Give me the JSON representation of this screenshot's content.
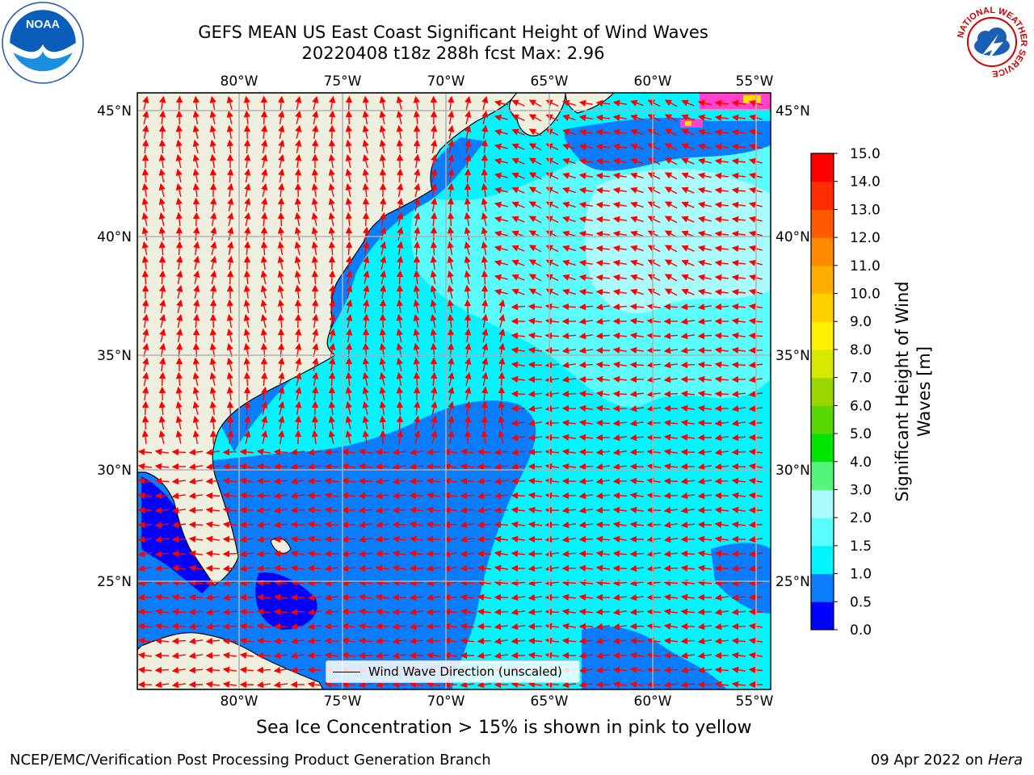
{
  "header": {
    "title_line1": "GEFS MEAN US East Coast Significant Height of Wind Waves",
    "title_line2": "20220408 t18z 288h fcst   Max: 2.96"
  },
  "logos": {
    "left": {
      "text": "NOAA",
      "icon": "noaa-logo-icon"
    },
    "right": {
      "icon": "nws-logo-icon",
      "ring_text": "NATIONAL WEATHER SERVICE"
    }
  },
  "map": {
    "lon_labels": [
      "80°W",
      "75°W",
      "70°W",
      "65°W",
      "60°W",
      "55°W"
    ],
    "lat_labels": [
      "45°N",
      "40°N",
      "35°N",
      "30°N",
      "25°N"
    ],
    "legend_label": "Wind Wave Direction (unscaled)"
  },
  "colorbar": {
    "label_line1": "Significant Height of Wind",
    "label_line2": "Waves [m]",
    "ticks": [
      "0.0",
      "0.5",
      "1.0",
      "1.5",
      "2.0",
      "3.0",
      "4.0",
      "5.0",
      "6.0",
      "7.0",
      "8.0",
      "9.0",
      "10.0",
      "11.0",
      "12.0",
      "13.0",
      "14.0",
      "15.0"
    ],
    "colors": [
      "#0000ff",
      "#0a7dff",
      "#00f5ff",
      "#5afcfc",
      "#aafcfc",
      "#55f47b",
      "#00e400",
      "#56d800",
      "#9cd600",
      "#d4e800",
      "#fff000",
      "#ffd000",
      "#ffae00",
      "#ff8a00",
      "#ff5a00",
      "#ff2d00",
      "#ff0000"
    ]
  },
  "subtitle": "Sea Ice Concentration > 15% is shown in pink to yellow",
  "footer": {
    "left": "NCEP/EMC/Verification Post Processing Product Generation Branch",
    "right_date": "09 Apr 2022 on ",
    "right_machine": "Hera"
  },
  "colors": {
    "land": "#efefdf",
    "ocean_dark": "#0000ff",
    "ocean_mid": "#0a7dff",
    "ocean_light": "#00f5ff",
    "ocean_pale": "#5afcfc",
    "ocean_palest": "#aafcfc",
    "arrows": "#ff0000",
    "grid": "#b0b0b0"
  }
}
